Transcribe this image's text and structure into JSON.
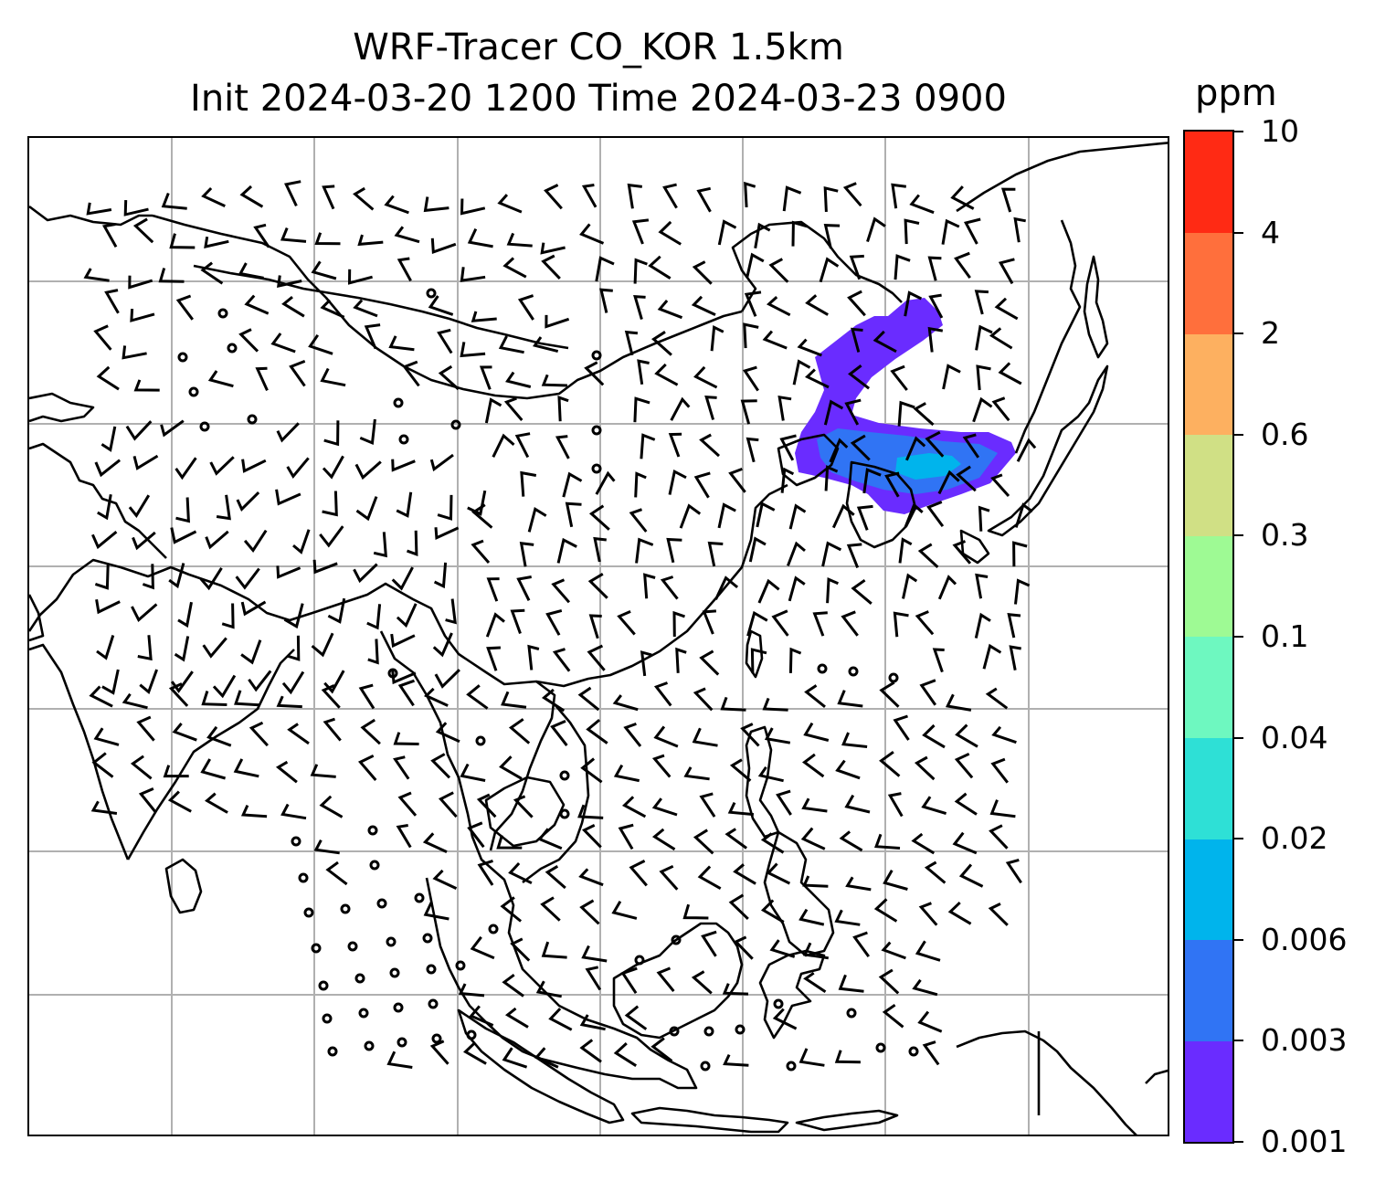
{
  "title": {
    "line1": "WRF-Tracer CO_KOR 1.5km",
    "line2": "Init 2024-03-20 1200 Time 2024-03-23 0900"
  },
  "colorbar": {
    "unit": "ppm",
    "levels": [
      "0.001",
      "0.003",
      "0.006",
      "0.02",
      "0.04",
      "0.1",
      "0.3",
      "0.6",
      "2",
      "4",
      "10"
    ],
    "colors": [
      "#6a2cff",
      "#3074f4",
      "#00b4ec",
      "#2ee0d6",
      "#6ef8c0",
      "#9efa94",
      "#d0e085",
      "#fdb060",
      "#ff6f3c",
      "#ff2a14"
    ]
  },
  "map": {
    "coastline_color": "#000000",
    "grid_color": "#b0b0b0",
    "plume_colors": [
      "#6a2cff",
      "#3074f4",
      "#00b4ec"
    ]
  }
}
